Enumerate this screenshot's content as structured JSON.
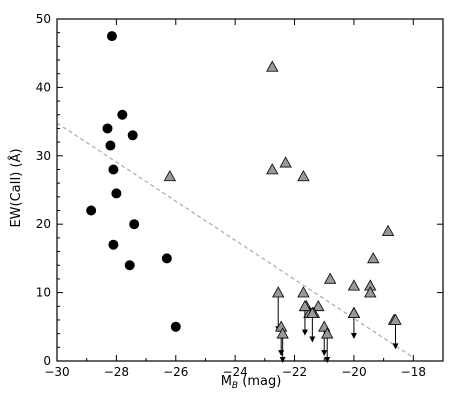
{
  "chart_data": {
    "type": "scatter",
    "title": "",
    "xlabel": "M_B (mag)",
    "xlabel_main": "M",
    "xlabel_sub": "B",
    "xlabel_unit": " (mag)",
    "ylabel": "EW(CaII) (Å)",
    "xlim": [
      -30,
      -17
    ],
    "ylim": [
      0,
      50
    ],
    "x_ticks": [
      -30,
      -28,
      -26,
      -24,
      -22,
      -20,
      -18
    ],
    "y_ticks": [
      0,
      10,
      20,
      30,
      40,
      50
    ],
    "x_tick_labels": [
      "−30",
      "−28",
      "−26",
      "−24",
      "−22",
      "−20",
      "−18"
    ],
    "y_tick_labels": [
      "0",
      "10",
      "20",
      "30",
      "40",
      "50"
    ],
    "grid": false,
    "series": [
      {
        "marker": "circle",
        "color": "#000000",
        "points": [
          {
            "x": -28.15,
            "y": 47.5
          },
          {
            "x": -27.8,
            "y": 36.0
          },
          {
            "x": -28.3,
            "y": 34.0
          },
          {
            "x": -27.45,
            "y": 33.0
          },
          {
            "x": -28.2,
            "y": 31.5
          },
          {
            "x": -28.1,
            "y": 28.0
          },
          {
            "x": -28.0,
            "y": 24.5
          },
          {
            "x": -28.85,
            "y": 22.0
          },
          {
            "x": -27.4,
            "y": 20.0
          },
          {
            "x": -28.1,
            "y": 17.0
          },
          {
            "x": -27.55,
            "y": 14.0
          },
          {
            "x": -26.3,
            "y": 15.0
          },
          {
            "x": -26.0,
            "y": 5.0
          }
        ]
      },
      {
        "marker": "triangle",
        "color": "#999999",
        "points": [
          {
            "x": -22.75,
            "y": 43.0
          },
          {
            "x": -26.2,
            "y": 27.0
          },
          {
            "x": -22.75,
            "y": 28.0
          },
          {
            "x": -22.3,
            "y": 29.0
          },
          {
            "x": -21.7,
            "y": 27.0
          },
          {
            "x": -18.85,
            "y": 19.0
          },
          {
            "x": -19.35,
            "y": 15.0
          },
          {
            "x": -20.8,
            "y": 12.0
          },
          {
            "x": -20.0,
            "y": 11.0
          },
          {
            "x": -19.45,
            "y": 11.0
          },
          {
            "x": -19.45,
            "y": 10.0
          },
          {
            "x": -21.7,
            "y": 10.0
          },
          {
            "x": -21.6,
            "y": 8.0
          },
          {
            "x": -21.2,
            "y": 8.0
          },
          {
            "x": -21.5,
            "y": 7.0
          },
          {
            "x": -21.35,
            "y": 7.0
          },
          {
            "x": -20.0,
            "y": 7.0
          },
          {
            "x": -18.65,
            "y": 6.0
          }
        ]
      },
      {
        "marker": "triangle-upper-limit",
        "color": "#999999",
        "points": [
          {
            "x": -22.55,
            "y": 10.0,
            "limit": 4.5
          },
          {
            "x": -22.45,
            "y": 5.0,
            "limit": 1.0
          },
          {
            "x": -22.4,
            "y": 4.0,
            "limit": 0.0
          },
          {
            "x": -21.65,
            "y": 8.0,
            "limit": 4.0
          },
          {
            "x": -21.4,
            "y": 7.0,
            "limit": 3.0
          },
          {
            "x": -21.0,
            "y": 5.0,
            "limit": 1.0
          },
          {
            "x": -20.9,
            "y": 4.0,
            "limit": 0.0
          },
          {
            "x": -20.0,
            "y": 7.0,
            "limit": 3.5
          },
          {
            "x": -18.6,
            "y": 6.0,
            "limit": 2.0
          }
        ]
      }
    ],
    "trend_line": {
      "style": "dashed",
      "color": "#aaaaaa",
      "x": [
        -30,
        -18
      ],
      "y": [
        34.8,
        0.5
      ]
    }
  }
}
